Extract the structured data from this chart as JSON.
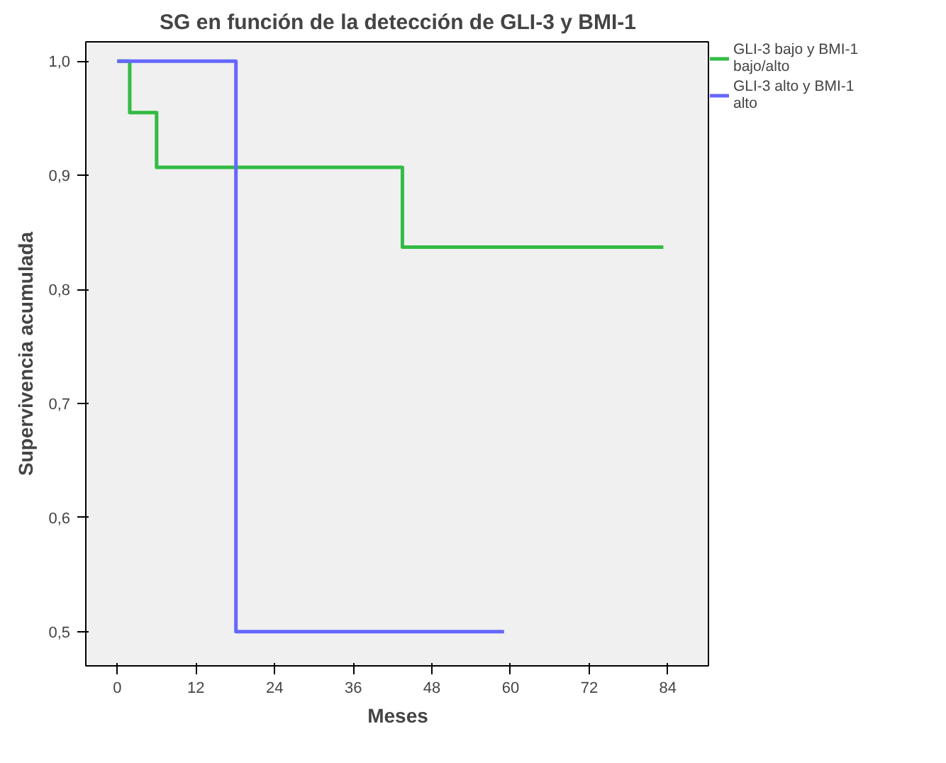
{
  "chart_data": {
    "type": "step",
    "title": "SG en función de la detección de GLI-3 y BMI-1",
    "xlabel": "Meses",
    "ylabel": "Supervivencia acumulada",
    "xlim": [
      -4.8,
      90.4
    ],
    "ylim": [
      0.47,
      1.017
    ],
    "xticks": [
      0,
      12,
      24,
      36,
      48,
      60,
      72,
      84
    ],
    "yticks": [
      {
        "value": 0.5,
        "label": "0,5"
      },
      {
        "value": 0.6,
        "label": "0,6"
      },
      {
        "value": 0.7,
        "label": "0,7"
      },
      {
        "value": 0.8,
        "label": "0,8"
      },
      {
        "value": 0.9,
        "label": "0,9"
      },
      {
        "value": 1.0,
        "label": "1,0"
      }
    ],
    "grid": false,
    "legend": "top right",
    "series": [
      {
        "name": "GLI-3 bajo y BMI-1 bajo/alto",
        "color": "#33bb44",
        "x": [
          0,
          1.9,
          6,
          43.5,
          83.3
        ],
        "values": [
          1.0,
          0.955,
          0.907,
          0.837,
          0.837
        ]
      },
      {
        "name": "GLI-3 alto y BMI-1 alto",
        "color": "#6666ff",
        "x": [
          0,
          18.1,
          59
        ],
        "values": [
          1.0,
          0.5,
          0.5
        ]
      }
    ]
  }
}
